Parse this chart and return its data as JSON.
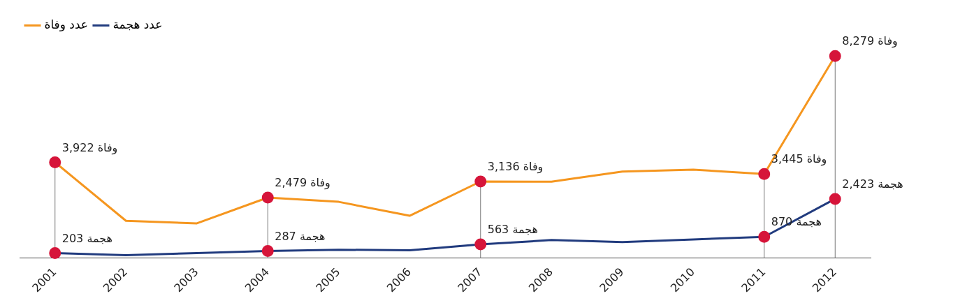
{
  "chart_data": {
    "type": "line",
    "categories": [
      "2001",
      "2002",
      "2003",
      "2004",
      "2005",
      "2006",
      "2007",
      "2008",
      "2009",
      "2010",
      "2011",
      "2012"
    ],
    "series": [
      {
        "name": "عدد وفاة",
        "color": "#f5961f",
        "values": [
          3922,
          1527,
          1423,
          2479,
          2303,
          1733,
          3136,
          3131,
          3545,
          3622,
          3445,
          8279
        ],
        "value_labels": [
          "3,922 وفاة",
          null,
          null,
          "2,479 وفاة",
          null,
          null,
          "3,136 وفاة",
          null,
          null,
          null,
          "3,445 وفاة",
          "8,279 وفاة"
        ]
      },
      {
        "name": "عدد هجمة",
        "color": "#213b7e",
        "values": [
          203,
          119,
          203,
          287,
          343,
          315,
          563,
          737,
          652,
          765,
          870,
          2423
        ],
        "value_labels": [
          "203 هجمة",
          null,
          null,
          "287 هجمة",
          null,
          null,
          "563 هجمة",
          null,
          null,
          null,
          "870 هجمة",
          "2,423 هجمة"
        ]
      }
    ],
    "legend": "top left",
    "grid": false
  }
}
